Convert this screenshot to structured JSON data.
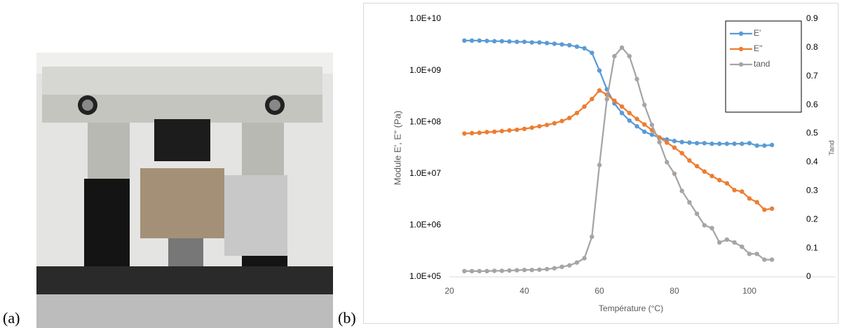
{
  "panel_labels": [
    "(a)",
    "(b)"
  ],
  "chart_data": {
    "type": "line",
    "x_label": "Température (°C)",
    "y_label": "Module E', E'' (Pa)",
    "y2_label": "Tand",
    "xlim": [
      20,
      123
    ],
    "xticks": [
      20,
      40,
      60,
      80,
      100
    ],
    "ylim": [
      100000,
      10000000000
    ],
    "log_y": true,
    "yticks": [
      {
        "value": 100000,
        "label": "1.0E+05"
      },
      {
        "value": 1000000,
        "label": "1.0E+06"
      },
      {
        "value": 10000000,
        "label": "1.0E+07"
      },
      {
        "value": 100000000,
        "label": "1.0E+08"
      },
      {
        "value": 1000000000,
        "label": "1.0E+09"
      },
      {
        "value": 10000000000,
        "label": "1.0E+10"
      }
    ],
    "y2lim": [
      0,
      0.9
    ],
    "y2ticks": [
      0,
      0.1,
      0.2,
      0.3,
      0.4,
      0.5,
      0.6,
      0.7,
      0.8,
      0.9
    ],
    "grid": false,
    "legend": "top-right",
    "x": [
      24,
      26,
      28,
      30,
      32,
      34,
      36,
      38,
      40,
      42,
      44,
      46,
      48,
      50,
      52,
      54,
      56,
      58,
      60,
      62,
      64,
      66,
      68,
      70,
      72,
      74,
      76,
      78,
      80,
      82,
      84,
      86,
      88,
      90,
      92,
      94,
      96,
      98,
      100,
      102,
      104,
      106
    ],
    "series": [
      {
        "name": "E'",
        "color": "#5b9bd5",
        "values": [
          3800000000.0,
          3800000000.0,
          3800000000.0,
          3750000000.0,
          3700000000.0,
          3700000000.0,
          3650000000.0,
          3600000000.0,
          3600000000.0,
          3500000000.0,
          3500000000.0,
          3400000000.0,
          3300000000.0,
          3200000000.0,
          3100000000.0,
          2900000000.0,
          2700000000.0,
          2200000000.0,
          1000000000.0,
          430000000.0,
          230000000.0,
          150000000.0,
          107000000.0,
          83000000.0,
          65000000.0,
          57000000.0,
          50000000.0,
          46000000.0,
          43000000.0,
          41000000.0,
          40000000.0,
          39000000.0,
          39000000.0,
          38000000.0,
          38000000.0,
          38000000.0,
          38000000.0,
          38000000.0,
          39000000.0,
          35000000.0,
          35000000.0,
          36000000.0
        ]
      },
      {
        "name": "E''",
        "color": "#ed7d31",
        "values": [
          60000000.0,
          61000000.0,
          62000000.0,
          64000000.0,
          65000000.0,
          67000000.0,
          69000000.0,
          71000000.0,
          74000000.0,
          78000000.0,
          83000000.0,
          88000000.0,
          95000000.0,
          105000000.0,
          120000000.0,
          150000000.0,
          200000000.0,
          280000000.0,
          410000000.0,
          340000000.0,
          260000000.0,
          200000000.0,
          150000000.0,
          115000000.0,
          90000000.0,
          70000000.0,
          50000000.0,
          40000000.0,
          32000000.0,
          25000000.0,
          18000000.0,
          14000000.0,
          11000000.0,
          9000000.0,
          7500000.0,
          6500000.0,
          4800000.0,
          4500000.0,
          3300000.0,
          2800000.0,
          2000000.0,
          2100000.0
        ]
      },
      {
        "name": "tand",
        "color": "#a5a5a5",
        "axis": "y2",
        "values": [
          0.02,
          0.02,
          0.02,
          0.02,
          0.021,
          0.021,
          0.022,
          0.023,
          0.024,
          0.024,
          0.025,
          0.027,
          0.03,
          0.035,
          0.04,
          0.05,
          0.065,
          0.14,
          0.39,
          0.62,
          0.77,
          0.8,
          0.77,
          0.69,
          0.6,
          0.53,
          0.47,
          0.4,
          0.36,
          0.3,
          0.26,
          0.22,
          0.18,
          0.17,
          0.12,
          0.13,
          0.12,
          0.105,
          0.08,
          0.08,
          0.06,
          0.06
        ]
      }
    ]
  }
}
